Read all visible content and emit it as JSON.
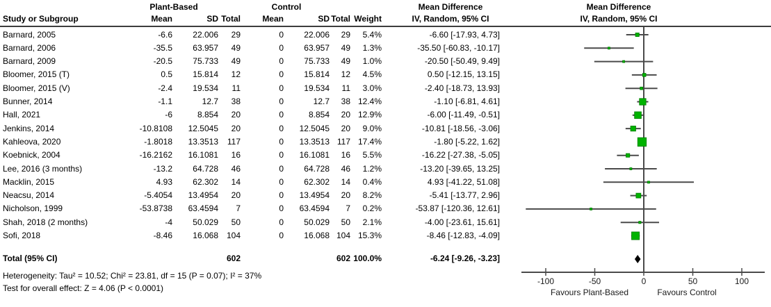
{
  "header": {
    "group_plant_based": "Plant-Based",
    "group_control": "Control",
    "mean_difference_left": "Mean Difference",
    "mean_difference_right": "Mean Difference",
    "col_study": "Study or Subgroup",
    "col_mean_pb": "Mean",
    "col_sd_pb": "SD",
    "col_total_pb": "Total",
    "col_mean_c": "Mean",
    "col_sd_c": "SD",
    "col_total_c": "Total",
    "col_weight": "Weight",
    "col_ci_left": "IV, Random, 95% CI",
    "col_ci_right": "IV, Random, 95% CI"
  },
  "chart_data": {
    "type": "forest",
    "effect_measure": "Mean Difference",
    "model": "IV, Random, 95% CI",
    "studies": [
      {
        "name": "Barnard, 2005",
        "mean_pb": "-6.6",
        "sd_pb": "22.006",
        "n_pb": "29",
        "mean_c": "0",
        "sd_c": "22.006",
        "n_c": "29",
        "weight": "5.4%",
        "weight_value": 5.4,
        "ci_label": "-6.60 [-17.93, 4.73]",
        "md": -6.6,
        "lo": -17.93,
        "hi": 4.73
      },
      {
        "name": "Barnard, 2006",
        "mean_pb": "-35.5",
        "sd_pb": "63.957",
        "n_pb": "49",
        "mean_c": "0",
        "sd_c": "63.957",
        "n_c": "49",
        "weight": "1.3%",
        "weight_value": 1.3,
        "ci_label": "-35.50 [-60.83, -10.17]",
        "md": -35.5,
        "lo": -60.83,
        "hi": -10.17
      },
      {
        "name": "Barnard, 2009",
        "mean_pb": "-20.5",
        "sd_pb": "75.733",
        "n_pb": "49",
        "mean_c": "0",
        "sd_c": "75.733",
        "n_c": "49",
        "weight": "1.0%",
        "weight_value": 1.0,
        "ci_label": "-20.50 [-50.49, 9.49]",
        "md": -20.5,
        "lo": -50.49,
        "hi": 9.49
      },
      {
        "name": "Bloomer, 2015 (T)",
        "mean_pb": "0.5",
        "sd_pb": "15.814",
        "n_pb": "12",
        "mean_c": "0",
        "sd_c": "15.814",
        "n_c": "12",
        "weight": "4.5%",
        "weight_value": 4.5,
        "ci_label": "0.50 [-12.15, 13.15]",
        "md": 0.5,
        "lo": -12.15,
        "hi": 13.15
      },
      {
        "name": "Bloomer, 2015 (V)",
        "mean_pb": "-2.4",
        "sd_pb": "19.534",
        "n_pb": "11",
        "mean_c": "0",
        "sd_c": "19.534",
        "n_c": "11",
        "weight": "3.0%",
        "weight_value": 3.0,
        "ci_label": "-2.40 [-18.73, 13.93]",
        "md": -2.4,
        "lo": -18.73,
        "hi": 13.93
      },
      {
        "name": "Bunner, 2014",
        "mean_pb": "-1.1",
        "sd_pb": "12.7",
        "n_pb": "38",
        "mean_c": "0",
        "sd_c": "12.7",
        "n_c": "38",
        "weight": "12.4%",
        "weight_value": 12.4,
        "ci_label": "-1.10 [-6.81, 4.61]",
        "md": -1.1,
        "lo": -6.81,
        "hi": 4.61
      },
      {
        "name": "Hall, 2021",
        "mean_pb": "-6",
        "sd_pb": "8.854",
        "n_pb": "20",
        "mean_c": "0",
        "sd_c": "8.854",
        "n_c": "20",
        "weight": "12.9%",
        "weight_value": 12.9,
        "ci_label": "-6.00 [-11.49, -0.51]",
        "md": -6.0,
        "lo": -11.49,
        "hi": -0.51
      },
      {
        "name": "Jenkins, 2014",
        "mean_pb": "-10.8108",
        "sd_pb": "12.5045",
        "n_pb": "20",
        "mean_c": "0",
        "sd_c": "12.5045",
        "n_c": "20",
        "weight": "9.0%",
        "weight_value": 9.0,
        "ci_label": "-10.81 [-18.56, -3.06]",
        "md": -10.81,
        "lo": -18.56,
        "hi": -3.06
      },
      {
        "name": "Kahleova, 2020",
        "mean_pb": "-1.8018",
        "sd_pb": "13.3513",
        "n_pb": "117",
        "mean_c": "0",
        "sd_c": "13.3513",
        "n_c": "117",
        "weight": "17.4%",
        "weight_value": 17.4,
        "ci_label": "-1.80 [-5.22, 1.62]",
        "md": -1.8,
        "lo": -5.22,
        "hi": 1.62
      },
      {
        "name": "Koebnick, 2004",
        "mean_pb": "-16.2162",
        "sd_pb": "16.1081",
        "n_pb": "16",
        "mean_c": "0",
        "sd_c": "16.1081",
        "n_c": "16",
        "weight": "5.5%",
        "weight_value": 5.5,
        "ci_label": "-16.22 [-27.38, -5.05]",
        "md": -16.22,
        "lo": -27.38,
        "hi": -5.05
      },
      {
        "name": "Lee, 2016 (3 months)",
        "mean_pb": "-13.2",
        "sd_pb": "64.728",
        "n_pb": "46",
        "mean_c": "0",
        "sd_c": "64.728",
        "n_c": "46",
        "weight": "1.2%",
        "weight_value": 1.2,
        "ci_label": "-13.20 [-39.65, 13.25]",
        "md": -13.2,
        "lo": -39.65,
        "hi": 13.25
      },
      {
        "name": "Macklin, 2015",
        "mean_pb": "4.93",
        "sd_pb": "62.302",
        "n_pb": "14",
        "mean_c": "0",
        "sd_c": "62.302",
        "n_c": "14",
        "weight": "0.4%",
        "weight_value": 0.4,
        "ci_label": "4.93 [-41.22, 51.08]",
        "md": 4.93,
        "lo": -41.22,
        "hi": 51.08
      },
      {
        "name": "Neacsu, 2014",
        "mean_pb": "-5.4054",
        "sd_pb": "13.4954",
        "n_pb": "20",
        "mean_c": "0",
        "sd_c": "13.4954",
        "n_c": "20",
        "weight": "8.2%",
        "weight_value": 8.2,
        "ci_label": "-5.41 [-13.77, 2.96]",
        "md": -5.41,
        "lo": -13.77,
        "hi": 2.96
      },
      {
        "name": "Nicholson, 1999",
        "mean_pb": "-53.8738",
        "sd_pb": "63.4594",
        "n_pb": "7",
        "mean_c": "0",
        "sd_c": "63.4594",
        "n_c": "7",
        "weight": "0.2%",
        "weight_value": 0.2,
        "ci_label": "-53.87 [-120.36, 12.61]",
        "md": -53.87,
        "lo": -120.36,
        "hi": 12.61
      },
      {
        "name": "Shah, 2018 (2 months)",
        "mean_pb": "-4",
        "sd_pb": "50.029",
        "n_pb": "50",
        "mean_c": "0",
        "sd_c": "50.029",
        "n_c": "50",
        "weight": "2.1%",
        "weight_value": 2.1,
        "ci_label": "-4.00 [-23.61, 15.61]",
        "md": -4.0,
        "lo": -23.61,
        "hi": 15.61
      },
      {
        "name": "Sofi, 2018",
        "mean_pb": "-8.46",
        "sd_pb": "16.068",
        "n_pb": "104",
        "mean_c": "0",
        "sd_c": "16.068",
        "n_c": "104",
        "weight": "15.3%",
        "weight_value": 15.3,
        "ci_label": "-8.46 [-12.83, -4.09]",
        "md": -8.46,
        "lo": -12.83,
        "hi": -4.09
      }
    ],
    "total": {
      "label": "Total (95% CI)",
      "n_plant_based": "602",
      "n_control": "602",
      "weight": "100.0%",
      "ci_label": "-6.24 [-9.26, -3.23]",
      "md": -6.24,
      "lo": -9.26,
      "hi": -3.23
    },
    "axis": {
      "ticks": [
        "-100",
        "-50",
        "0",
        "50",
        "100"
      ],
      "tick_values": [
        -100,
        -50,
        0,
        50,
        100
      ],
      "min": -125,
      "max": 125,
      "favours_left": "Favours Plant-Based",
      "favours_right": "Favours Control"
    },
    "colors": {
      "marker_green": "#00b300",
      "marker_border": "#007d00",
      "line_gray": "#4a4a4a",
      "diamond_black": "#000000"
    }
  },
  "footer": {
    "heterogeneity": "Heterogeneity: Tau² = 10.52; Chi² = 23.81, df = 15 (P = 0.07); I² = 37%",
    "overall_effect": "Test for overall effect: Z = 4.06 (P < 0.0001)"
  }
}
